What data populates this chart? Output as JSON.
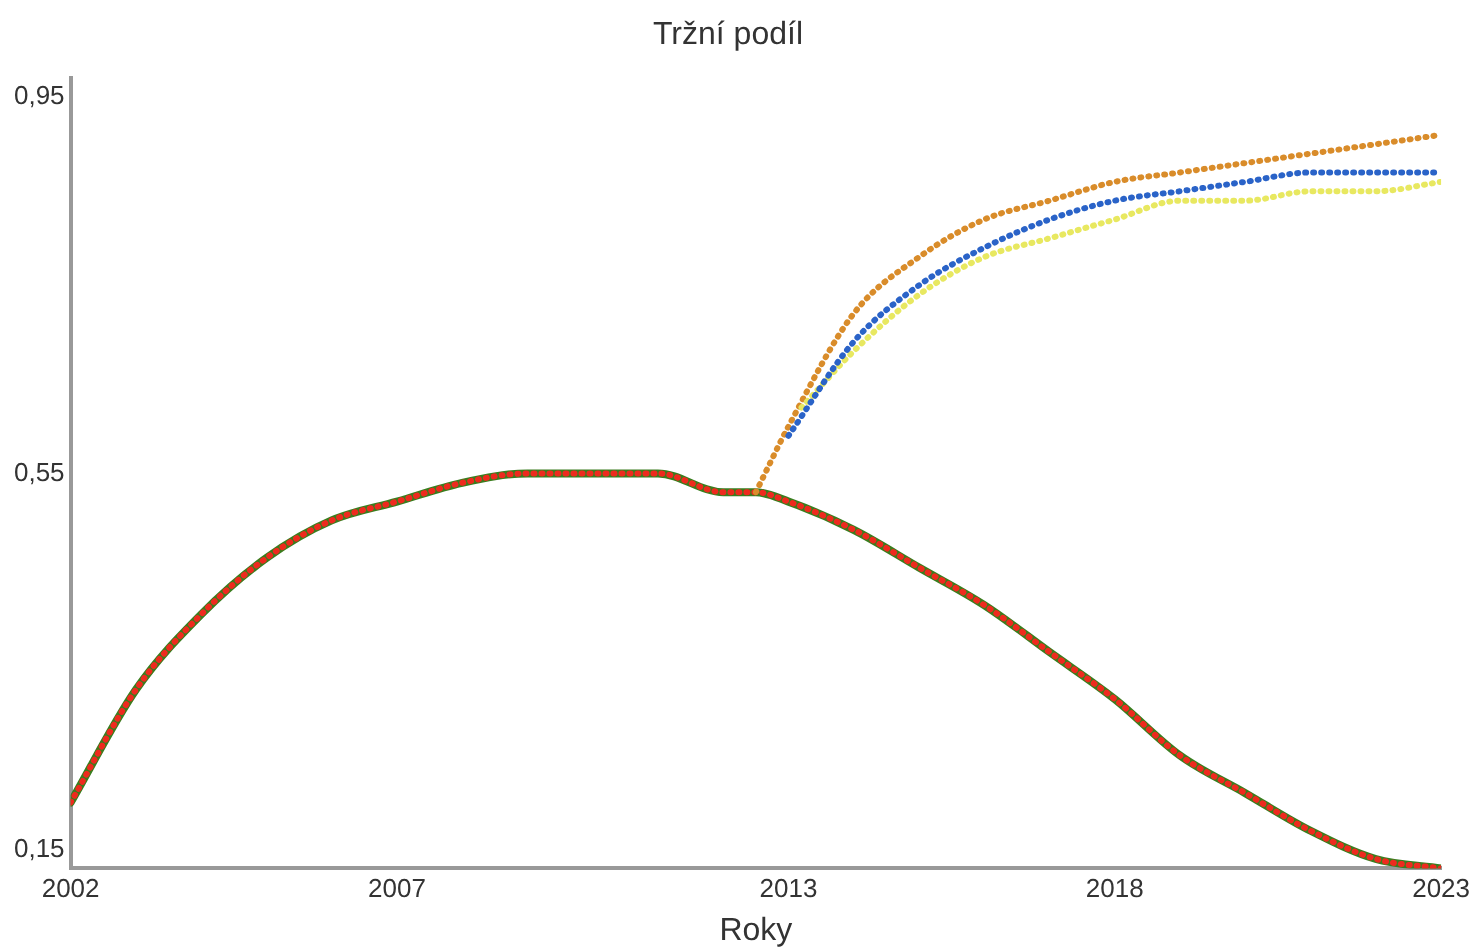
{
  "chart_data": {
    "type": "line",
    "title": "Tržní podíl",
    "xlabel": "Roky",
    "xlim": [
      2002,
      2023
    ],
    "xticks": [
      2002,
      2007,
      2013,
      2018,
      2023
    ],
    "ylim": [
      0.13,
      0.97
    ],
    "yticks": [
      {
        "value": 0.15,
        "label": "0,15"
      },
      {
        "value": 0.55,
        "label": "0,55"
      },
      {
        "value": 0.95,
        "label": "0,95"
      }
    ],
    "grid": false,
    "legend": false,
    "marker": "none",
    "series": [
      {
        "color": "#3a7d1e",
        "line_style": "solid",
        "x": [
          2002,
          2003,
          2004,
          2005,
          2006,
          2007,
          2008,
          2009,
          2010,
          2011,
          2012,
          2012.5,
          2013,
          2014,
          2015,
          2016,
          2017,
          2018,
          2019,
          2020,
          2021,
          2022,
          2023
        ],
        "values": [
          0.2,
          0.32,
          0.4,
          0.46,
          0.5,
          0.52,
          0.54,
          0.55,
          0.55,
          0.55,
          0.53,
          0.53,
          0.52,
          0.49,
          0.45,
          0.41,
          0.36,
          0.31,
          0.25,
          0.21,
          0.17,
          0.14,
          0.13
        ]
      },
      {
        "color": "#ee2a1e",
        "line_style": "dotted",
        "x": [
          2002,
          2003,
          2004,
          2005,
          2006,
          2007,
          2008,
          2009,
          2010,
          2011,
          2012,
          2012.5,
          2013,
          2014,
          2015,
          2016,
          2017,
          2018,
          2019,
          2020,
          2021,
          2022,
          2023
        ],
        "values": [
          0.2,
          0.32,
          0.4,
          0.46,
          0.5,
          0.52,
          0.54,
          0.55,
          0.55,
          0.55,
          0.53,
          0.53,
          0.52,
          0.49,
          0.45,
          0.41,
          0.36,
          0.31,
          0.25,
          0.21,
          0.17,
          0.14,
          0.13
        ]
      },
      {
        "color": "#d98c2a",
        "line_style": "dotted",
        "x": [
          2012.5,
          2013,
          2014,
          2015,
          2016,
          2017,
          2018,
          2019,
          2020,
          2021,
          2022,
          2023
        ],
        "values": [
          0.53,
          0.6,
          0.72,
          0.78,
          0.82,
          0.84,
          0.86,
          0.87,
          0.88,
          0.89,
          0.9,
          0.91
        ]
      },
      {
        "color": "#2a63c8",
        "line_style": "dotted",
        "x": [
          2013,
          2014,
          2015,
          2016,
          2017,
          2018,
          2019,
          2020,
          2021,
          2022,
          2023
        ],
        "values": [
          0.59,
          0.69,
          0.75,
          0.79,
          0.82,
          0.84,
          0.85,
          0.86,
          0.87,
          0.87,
          0.87
        ]
      },
      {
        "color": "#e8e860",
        "line_style": "dotted",
        "x": [
          2013.2,
          2014,
          2015,
          2016,
          2017,
          2018,
          2019,
          2020,
          2021,
          2022,
          2023
        ],
        "values": [
          0.62,
          0.68,
          0.74,
          0.78,
          0.8,
          0.82,
          0.84,
          0.84,
          0.85,
          0.85,
          0.86
        ]
      }
    ]
  }
}
